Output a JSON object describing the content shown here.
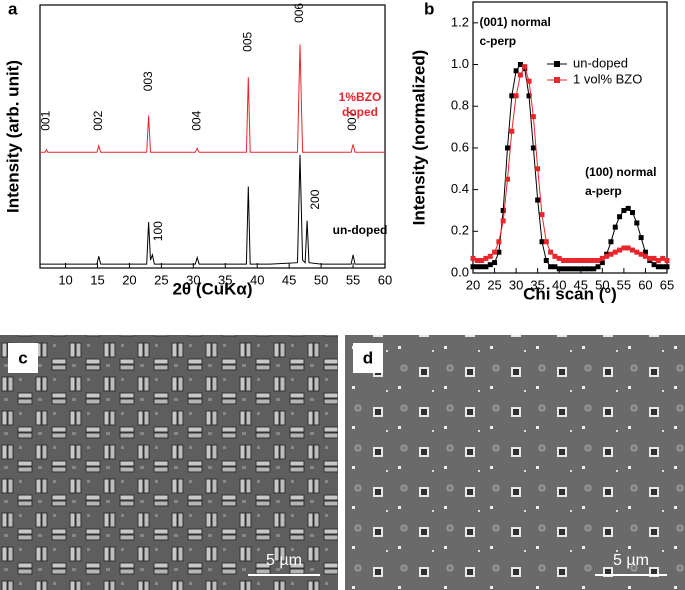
{
  "chart_data": [
    {
      "type": "line",
      "panel": "a",
      "x_label": "2θ (CuKα)",
      "y_label": "Intensity (arb. unit)",
      "xlim": [
        6,
        60
      ],
      "xticks": [
        10,
        15,
        20,
        25,
        30,
        35,
        40,
        45,
        50,
        55,
        60
      ],
      "ylim": [
        0,
        100
      ],
      "legend": "inline",
      "x": [
        6,
        6.8,
        7.0,
        7.2,
        10,
        14.9,
        15.2,
        15.5,
        20,
        22.7,
        23.0,
        23.3,
        23.6,
        23.9,
        25,
        30.3,
        30.6,
        30.9,
        35,
        38.3,
        38.6,
        38.9,
        42,
        46.3,
        46.7,
        47.1,
        47.5,
        47.8,
        48.1,
        50,
        54.7,
        55.0,
        55.3,
        60
      ],
      "series": [
        {
          "name": "1%BZO doped",
          "color": "#e8262b",
          "values": [
            44,
            44,
            45,
            44,
            44,
            44,
            46.5,
            44,
            44,
            44,
            58,
            44,
            44,
            44,
            44,
            44,
            45.5,
            44,
            44,
            44,
            72.5,
            44,
            44,
            44,
            85,
            44,
            44,
            44,
            44,
            44,
            44,
            47,
            44,
            44
          ]
        },
        {
          "name": "un-doped",
          "color": "#000000",
          "values": [
            1.5,
            1.5,
            1.5,
            1.5,
            1.5,
            1.5,
            4.5,
            1.5,
            1.5,
            1.5,
            17.5,
            3,
            5,
            1.5,
            1.5,
            1.5,
            4,
            1.5,
            1.5,
            1.5,
            31,
            1.5,
            1.5,
            2,
            43,
            3,
            2,
            18,
            2,
            1.5,
            1.5,
            5,
            1.5,
            1.5
          ]
        }
      ],
      "annotations": [
        {
          "text": "001",
          "x": 7,
          "y": 56
        },
        {
          "text": "002",
          "x": 15.2,
          "y": 56
        },
        {
          "text": "003",
          "x": 23,
          "y": 71
        },
        {
          "text": "004",
          "x": 30.6,
          "y": 56
        },
        {
          "text": "005",
          "x": 38.6,
          "y": 86
        },
        {
          "text": "006",
          "x": 46.7,
          "y": 97
        },
        {
          "text": "007",
          "x": 55,
          "y": 56
        },
        {
          "text": "100",
          "x": 24.6,
          "y": 14
        },
        {
          "text": "200",
          "x": 49.2,
          "y": 26
        }
      ]
    },
    {
      "type": "line",
      "panel": "b",
      "x_label": "Chi scan (°)",
      "y_label": "Intensity (normalized)",
      "markers": "square",
      "xlim": [
        20,
        65
      ],
      "xticks": [
        20,
        25,
        30,
        35,
        40,
        45,
        50,
        55,
        60,
        65
      ],
      "ylim": [
        0,
        1.3
      ],
      "yticks": [
        {
          "value": 0,
          "label": "0.0"
        },
        0.2,
        0.4,
        0.6,
        0.8,
        {
          "value": 1,
          "label": "1.0"
        },
        1.2
      ],
      "legend": "upper right",
      "x": [
        20,
        21,
        22,
        23,
        24,
        25,
        26,
        27,
        28,
        29,
        30,
        31,
        32,
        33,
        34,
        35,
        36,
        37,
        38,
        39,
        40,
        41,
        42,
        43,
        44,
        45,
        46,
        47,
        48,
        49,
        50,
        51,
        52,
        53,
        54,
        55,
        56,
        57,
        58,
        59,
        60,
        61,
        62,
        63,
        64,
        65
      ],
      "series": [
        {
          "name": "un-doped",
          "color": "#000000",
          "values": [
            0.03,
            0.03,
            0.03,
            0.03,
            0.04,
            0.05,
            0.1,
            0.3,
            0.6,
            0.85,
            0.97,
            1.0,
            0.98,
            0.85,
            0.6,
            0.35,
            0.15,
            0.06,
            0.03,
            0.03,
            0.02,
            0.02,
            0.02,
            0.02,
            0.02,
            0.02,
            0.02,
            0.02,
            0.02,
            0.03,
            0.05,
            0.09,
            0.15,
            0.22,
            0.27,
            0.3,
            0.31,
            0.29,
            0.24,
            0.17,
            0.1,
            0.06,
            0.04,
            0.03,
            0.03,
            0.03
          ]
        },
        {
          "name": "1 vol% BZO",
          "color": "#e8262b",
          "values": [
            0.07,
            0.06,
            0.06,
            0.07,
            0.08,
            0.1,
            0.15,
            0.25,
            0.45,
            0.68,
            0.85,
            0.95,
            0.99,
            0.92,
            0.75,
            0.5,
            0.28,
            0.15,
            0.1,
            0.08,
            0.07,
            0.06,
            0.06,
            0.06,
            0.06,
            0.06,
            0.06,
            0.06,
            0.06,
            0.06,
            0.07,
            0.08,
            0.09,
            0.1,
            0.11,
            0.12,
            0.12,
            0.11,
            0.1,
            0.09,
            0.08,
            0.07,
            0.07,
            0.06,
            0.07,
            0.06
          ]
        }
      ],
      "annotations": [
        {
          "text": "(001) normal",
          "x": 21.5,
          "y": 1.2
        },
        {
          "text": "c-perp",
          "x": 21.5,
          "y": 1.11
        },
        {
          "text": "(100) normal",
          "x": 46,
          "y": 0.48
        },
        {
          "text": "a-perp",
          "x": 46,
          "y": 0.39
        }
      ]
    }
  ],
  "images": [
    {
      "panel": "c",
      "scale_bar": "5 µm"
    },
    {
      "panel": "d",
      "scale_bar": "5 µm"
    }
  ]
}
